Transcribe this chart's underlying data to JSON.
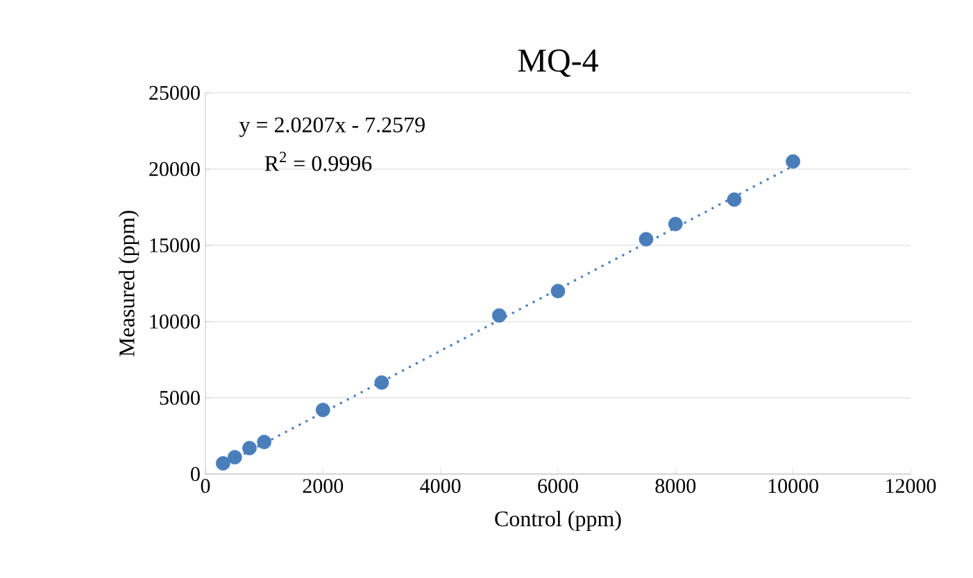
{
  "chart_data": {
    "type": "scatter",
    "title": "MQ-4",
    "xlabel": "Control (ppm)",
    "ylabel": "Measured (ppm)",
    "annotations": [
      "y = 2.0207x - 7.2579",
      "R$^{2}$ = 0.9996"
    ],
    "xlim": [
      0,
      12000
    ],
    "xticks": [
      0,
      2000,
      4000,
      6000,
      8000,
      10000,
      12000
    ],
    "ylim": [
      0,
      25000
    ],
    "yticks": [
      0,
      5000,
      10000,
      15000,
      20000,
      25000
    ],
    "grid": "y",
    "series": [
      {
        "color": "#4a7ebb",
        "marker": "circle",
        "x": [
          300,
          500,
          750,
          1000,
          2000,
          3000,
          5000,
          6000,
          7500,
          8000,
          9000,
          10000
        ],
        "values": [
          700,
          1100,
          1700,
          2100,
          4200,
          6000,
          10400,
          12000,
          15400,
          16400,
          18000,
          20500
        ]
      },
      {
        "type": "line",
        "color": "#4a7ebb",
        "line_style": "dotted",
        "marker": "none",
        "x": [
          300,
          10000
        ],
        "values": [
          600,
          20200
        ]
      }
    ]
  }
}
